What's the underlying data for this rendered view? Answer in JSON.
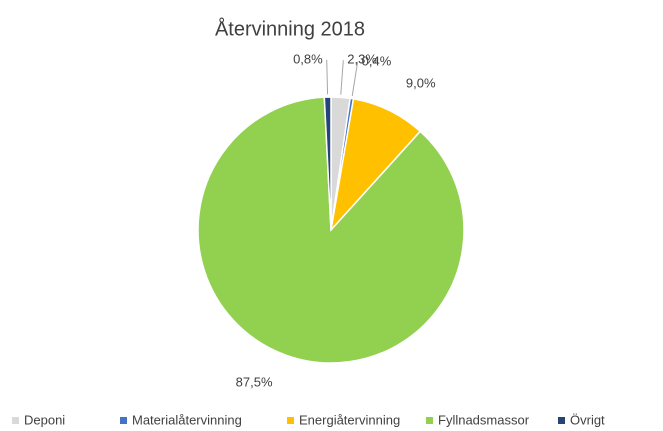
{
  "chart_data": {
    "type": "pie",
    "title": "Återvinning 2018",
    "categories": [
      "Deponi",
      "Materialåtervinning",
      "Energiåtervinning",
      "Fyllnadsmassor",
      "Övrigt"
    ],
    "values": [
      2.3,
      0.4,
      9.0,
      87.5,
      0.8
    ],
    "value_labels": [
      "2,3%",
      "0,4%",
      "9,0%",
      "87,5%",
      "0,8%"
    ],
    "colors": [
      "#d9d9d9",
      "#4472c4",
      "#ffc000",
      "#92d050",
      "#264478"
    ],
    "legend": "bottom"
  }
}
